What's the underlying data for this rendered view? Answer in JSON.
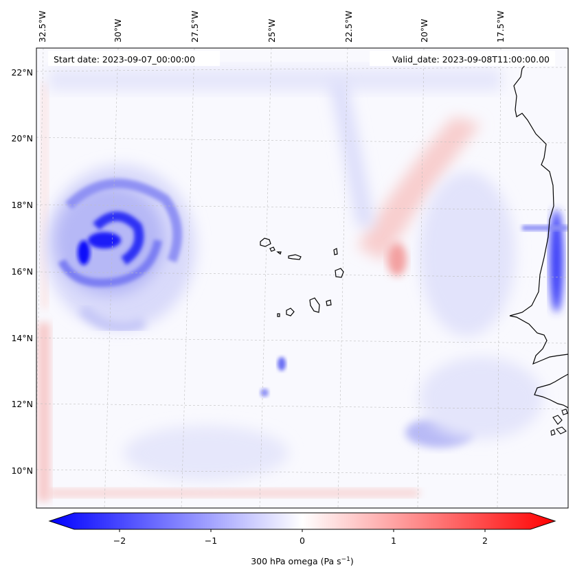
{
  "map": {
    "start_date": "Start date: 2023-09-07_00:00:00",
    "valid_date": "Valid_date: 2023-09-08T11:00:00.00",
    "lon_labels": [
      "32.5°W",
      "30°W",
      "27.5°W",
      "25°W",
      "22.5°W",
      "20°W",
      "17.5°W"
    ],
    "lat_labels": [
      "22°N",
      "20°N",
      "18°N",
      "16°N",
      "14°N",
      "12°N",
      "10°N"
    ],
    "features": [
      "Cabo Verde islands",
      "West African coastline",
      "Cyclone vortex (strong ascent)"
    ]
  },
  "colorbar": {
    "label_prefix": "300 hPa omega (Pa s",
    "label_exp": "−1",
    "label_suffix": ")",
    "tick_labels": [
      "−2",
      "−1",
      "0",
      "1",
      "2"
    ],
    "range": [
      -2.7,
      2.7
    ],
    "colors": {
      "negative": "#0000ff",
      "neutral": "#ffffff",
      "positive": "#ff0000"
    }
  }
}
